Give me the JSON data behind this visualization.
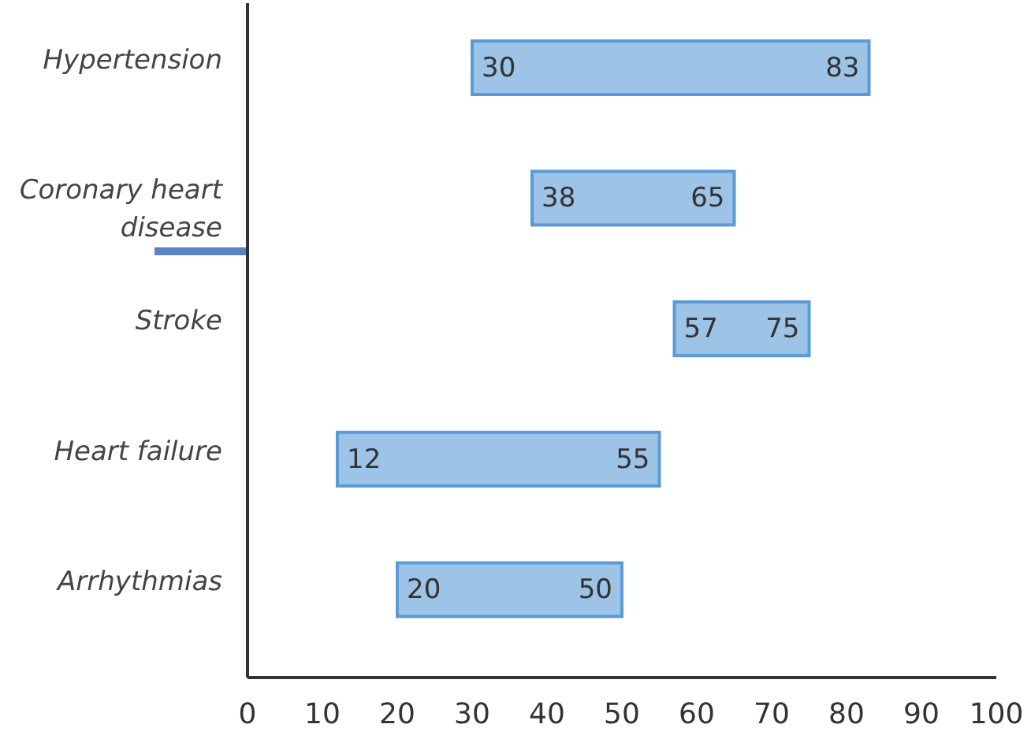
{
  "chart_data": {
    "type": "bar",
    "orientation": "horizontal",
    "categories": [
      "Hypertension",
      "Coronary heart disease",
      "Stroke",
      "Heart failure",
      "Arrhythmias"
    ],
    "base": [
      30,
      38,
      57,
      12,
      20
    ],
    "values": [
      53,
      27,
      18,
      43,
      30
    ],
    "color": "#9dc3e6",
    "xlim": [
      0,
      100
    ],
    "xticks": [
      0,
      10,
      20,
      30,
      40,
      50,
      60,
      70,
      80,
      90,
      100
    ],
    "grid": false,
    "legend": false,
    "annotations": [
      {
        "text": "30",
        "x": 30,
        "y": "Hypertension"
      },
      {
        "text": "83",
        "x": 83,
        "y": "Hypertension"
      },
      {
        "text": "38",
        "x": 38,
        "y": "Coronary heart disease"
      },
      {
        "text": "65",
        "x": 65,
        "y": "Coronary heart disease"
      },
      {
        "text": "57",
        "x": 57,
        "y": "Stroke"
      },
      {
        "text": "75",
        "x": 75,
        "y": "Stroke"
      },
      {
        "text": "12",
        "x": 12,
        "y": "Heart failure"
      },
      {
        "text": "55",
        "x": 55,
        "y": "Heart failure"
      },
      {
        "text": "20",
        "x": 20,
        "y": "Arrhythmias"
      },
      {
        "text": "50",
        "x": 50,
        "y": "Arrhythmias"
      }
    ]
  }
}
